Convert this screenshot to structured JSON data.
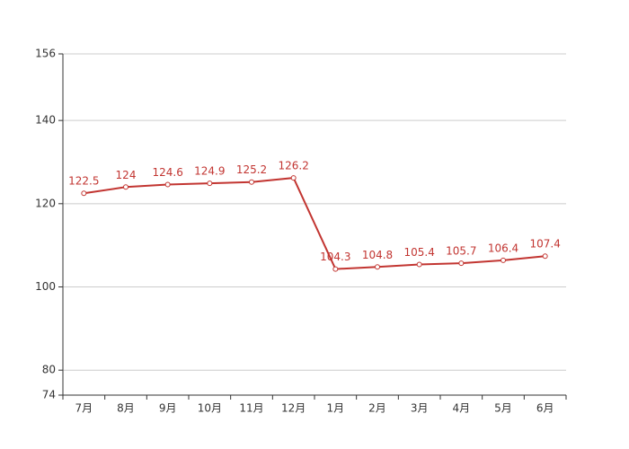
{
  "chart_data": {
    "type": "line",
    "categories": [
      "7月",
      "8月",
      "9月",
      "10月",
      "11月",
      "12月",
      "1月",
      "2月",
      "3月",
      "4月",
      "5月",
      "6月"
    ],
    "values": [
      122.5,
      124,
      124.6,
      124.9,
      125.2,
      126.2,
      104.3,
      104.8,
      105.4,
      105.7,
      106.4,
      107.4
    ],
    "color": "#c23531",
    "ylim": [
      74,
      156
    ],
    "yticks": [
      74,
      80,
      100,
      120,
      140,
      156
    ],
    "grid": true
  }
}
